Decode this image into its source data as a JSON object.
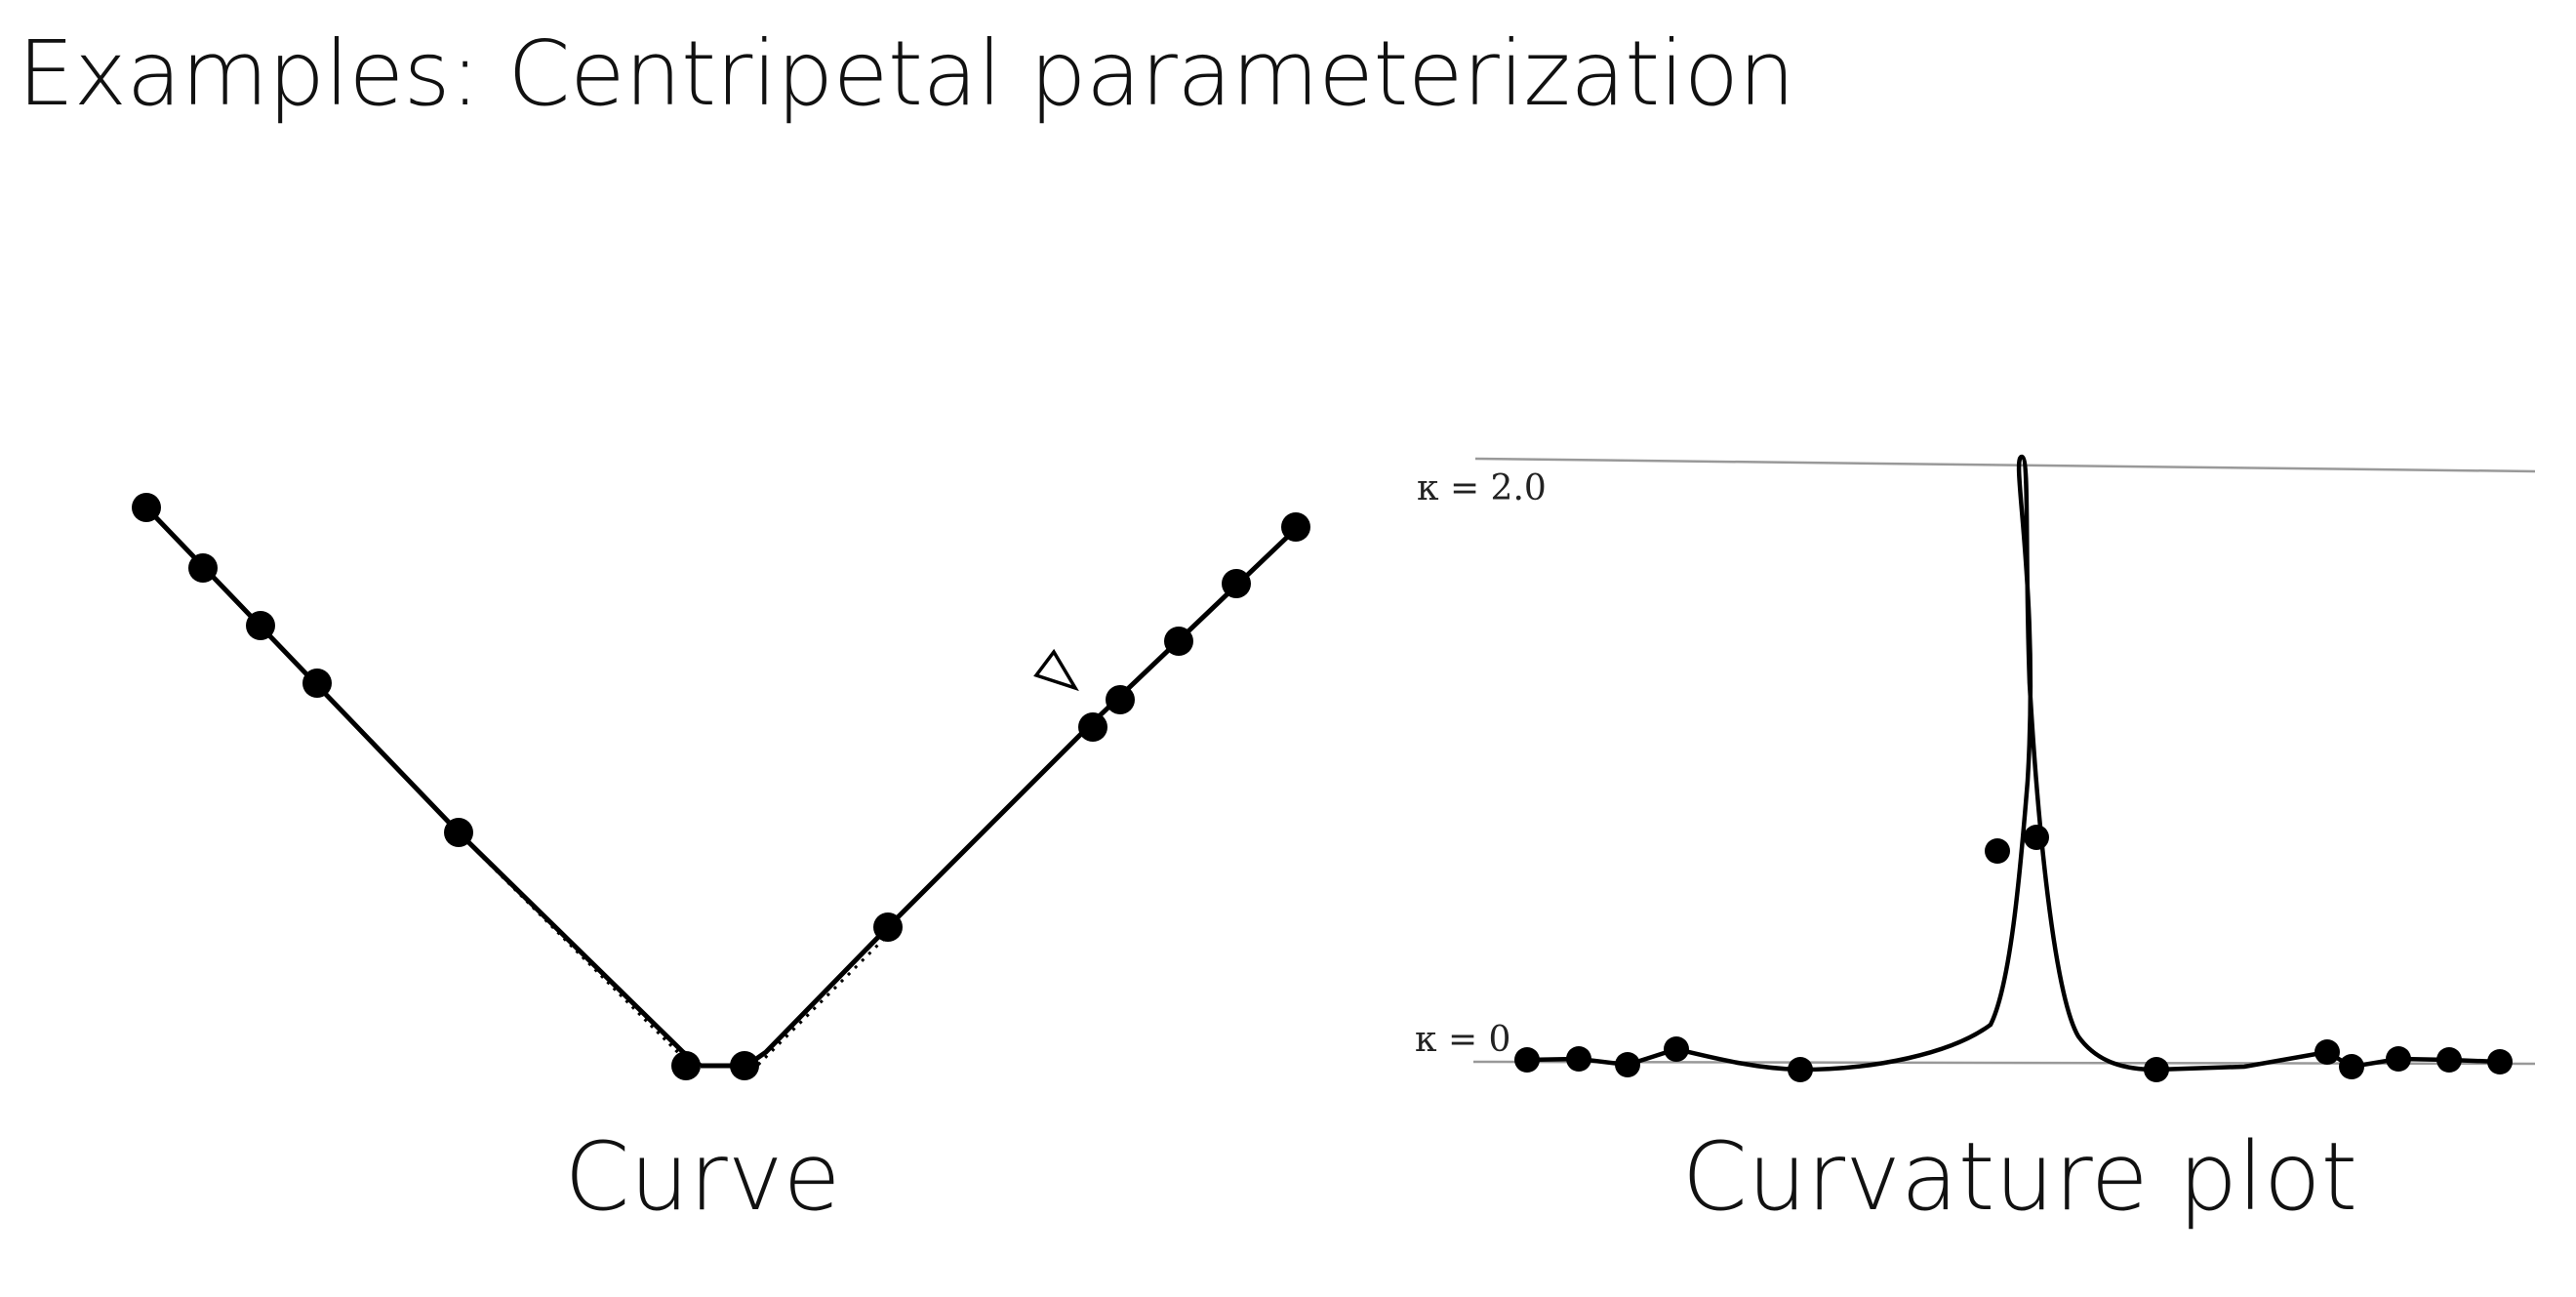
{
  "title": "Examples: Centripetal parameterization",
  "curve_panel": {
    "caption": "Curve",
    "marker_icon": "triangle-outline-icon"
  },
  "curvature_panel": {
    "caption": "Curvature plot",
    "label_max": "κ = 2.0",
    "label_zero": "κ = 0"
  },
  "colors": {
    "text": "#111111",
    "curve": "#000000",
    "reference_line": "#999999"
  }
}
